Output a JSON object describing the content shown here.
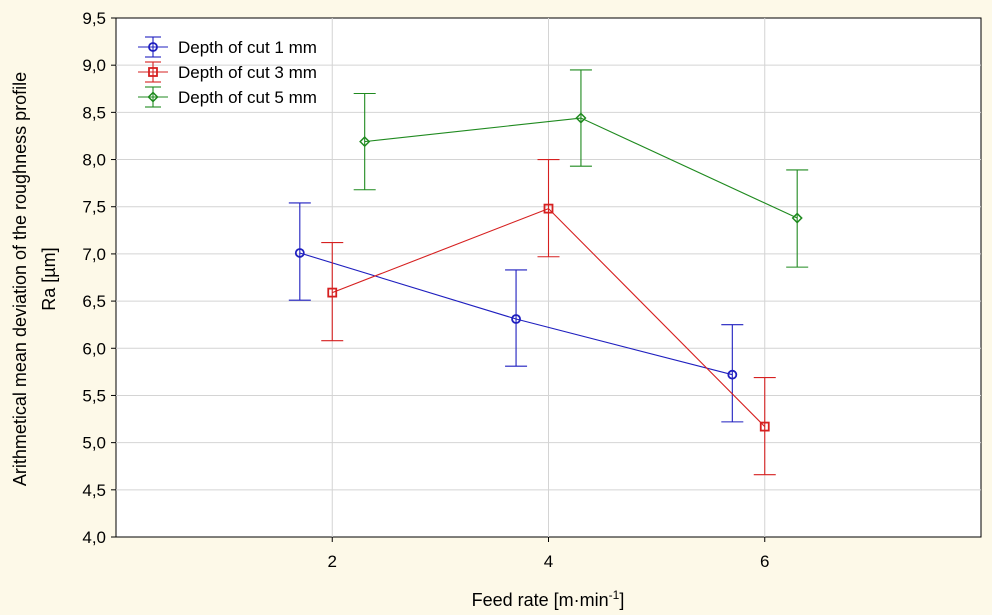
{
  "chart_data": {
    "type": "line",
    "title": "",
    "xlabel": "Feed rate [m·min",
    "xlabel_sup": "-1",
    "xlabel_suffix": "]",
    "ylabel_line1": "Arithmetical mean deviation of the roughness profile",
    "ylabel_line2": "Ra [µm]",
    "xlim": [
      0,
      8
    ],
    "ylim": [
      4.0,
      9.5
    ],
    "x_ticks": [
      2,
      4,
      6
    ],
    "x_tick_labels": [
      "2",
      "4",
      "6"
    ],
    "y_ticks": [
      4.0,
      4.5,
      5.0,
      5.5,
      6.0,
      6.5,
      7.0,
      7.5,
      8.0,
      8.5,
      9.0,
      9.5
    ],
    "y_tick_labels": [
      "4,0",
      "4,5",
      "5,0",
      "5,5",
      "6,0",
      "6,5",
      "7,0",
      "7,5",
      "8,0",
      "8,5",
      "9,0",
      "9,5"
    ],
    "grid": true,
    "legend_position": "top-left",
    "series": [
      {
        "name": "Depth of cut 1 mm",
        "color": "#1f1fbf",
        "marker": "circle",
        "x": [
          1.7,
          3.7,
          5.7
        ],
        "values": [
          7.01,
          6.31,
          5.72
        ],
        "err_low": [
          6.51,
          5.81,
          5.22
        ],
        "err_high": [
          7.54,
          6.83,
          6.25
        ]
      },
      {
        "name": "Depth of cut 3 mm",
        "color": "#d62020",
        "marker": "square",
        "x": [
          2.0,
          4.0,
          6.0
        ],
        "values": [
          6.59,
          7.48,
          5.17
        ],
        "err_low": [
          6.08,
          6.97,
          4.66
        ],
        "err_high": [
          7.12,
          8.0,
          5.69
        ]
      },
      {
        "name": "Depth of cut 5 mm",
        "color": "#1f8a1f",
        "marker": "diamond",
        "x": [
          2.3,
          4.3,
          6.3
        ],
        "values": [
          8.19,
          8.44,
          7.38
        ],
        "err_low": [
          7.68,
          7.93,
          6.86
        ],
        "err_high": [
          8.7,
          8.95,
          7.89
        ]
      }
    ]
  }
}
